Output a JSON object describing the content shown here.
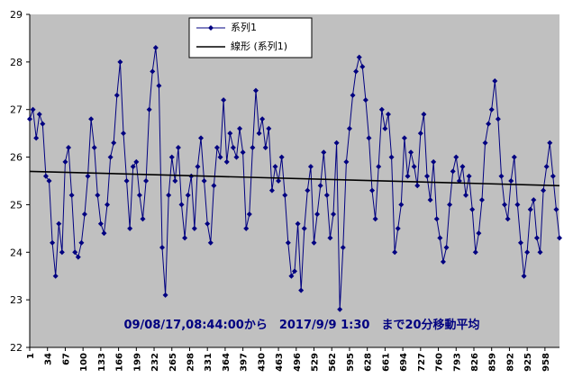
{
  "chart_data": {
    "type": "line",
    "annotation": "09/08/17,08:44:00から　2017/9/9 1:30　まで20分移動平均",
    "xlim": [
      1,
      985
    ],
    "ylim": [
      22,
      29
    ],
    "yticks": [
      22,
      23,
      24,
      25,
      26,
      27,
      28,
      29
    ],
    "xticks": [
      1,
      34,
      67,
      100,
      133,
      166,
      199,
      232,
      265,
      298,
      331,
      364,
      397,
      430,
      463,
      496,
      529,
      562,
      595,
      628,
      661,
      694,
      727,
      760,
      793,
      826,
      859,
      892,
      925,
      958
    ],
    "grid": false,
    "series": [
      {
        "name": "系列1",
        "color": "#000080",
        "marker": "diamond",
        "x": [
          1,
          7,
          13,
          19,
          25,
          31,
          37,
          43,
          49,
          55,
          61,
          67,
          73,
          79,
          85,
          91,
          97,
          103,
          109,
          115,
          121,
          127,
          133,
          139,
          145,
          151,
          157,
          163,
          169,
          175,
          181,
          187,
          193,
          199,
          205,
          211,
          217,
          223,
          229,
          235,
          241,
          247,
          253,
          259,
          265,
          271,
          277,
          283,
          289,
          295,
          301,
          307,
          313,
          319,
          325,
          331,
          337,
          343,
          349,
          355,
          361,
          367,
          373,
          379,
          385,
          391,
          397,
          403,
          409,
          415,
          421,
          427,
          433,
          439,
          445,
          451,
          457,
          463,
          469,
          475,
          481,
          487,
          493,
          499,
          505,
          511,
          517,
          523,
          529,
          535,
          541,
          547,
          553,
          559,
          565,
          571,
          577,
          583,
          589,
          595,
          601,
          607,
          613,
          619,
          625,
          631,
          637,
          643,
          649,
          655,
          661,
          667,
          673,
          679,
          685,
          691,
          697,
          703,
          709,
          715,
          721,
          727,
          733,
          739,
          745,
          751,
          757,
          763,
          769,
          775,
          781,
          787,
          793,
          799,
          805,
          811,
          817,
          823,
          829,
          835,
          841,
          847,
          853,
          859,
          865,
          871,
          877,
          883,
          889,
          895,
          901,
          907,
          913,
          919,
          925,
          931,
          937,
          943,
          949,
          955,
          961,
          967,
          973,
          979,
          985
        ],
        "values": [
          26.8,
          27.0,
          26.4,
          26.9,
          26.7,
          25.6,
          25.5,
          24.2,
          23.5,
          24.6,
          24.0,
          25.9,
          26.2,
          25.2,
          24.0,
          23.9,
          24.2,
          24.8,
          25.6,
          26.8,
          26.2,
          25.2,
          24.6,
          24.4,
          25.0,
          26.0,
          26.3,
          27.3,
          28.0,
          26.5,
          25.5,
          24.5,
          25.8,
          25.9,
          25.2,
          24.7,
          25.5,
          27.0,
          27.8,
          28.3,
          27.5,
          24.1,
          23.1,
          25.2,
          26.0,
          25.5,
          26.2,
          25.0,
          24.3,
          25.2,
          25.6,
          24.5,
          25.8,
          26.4,
          25.5,
          24.6,
          24.2,
          25.4,
          26.2,
          26.0,
          27.2,
          25.9,
          26.5,
          26.2,
          26.0,
          26.6,
          26.1,
          24.5,
          24.8,
          26.2,
          27.4,
          26.5,
          26.8,
          26.2,
          26.6,
          25.3,
          25.8,
          25.5,
          26.0,
          25.2,
          24.2,
          23.5,
          23.6,
          24.6,
          23.2,
          24.5,
          25.3,
          25.8,
          24.2,
          24.8,
          25.4,
          26.1,
          25.2,
          24.3,
          24.8,
          26.3,
          22.8,
          24.1,
          25.9,
          26.6,
          27.3,
          27.8,
          28.1,
          27.9,
          27.2,
          26.4,
          25.3,
          24.7,
          25.8,
          27.0,
          26.6,
          26.9,
          26.0,
          24.0,
          24.5,
          25.0,
          26.4,
          25.6,
          26.1,
          25.8,
          25.4,
          26.5,
          26.9,
          25.6,
          25.1,
          25.9,
          24.7,
          24.3,
          23.8,
          24.1,
          25.0,
          25.7,
          26.0,
          25.5,
          25.8,
          25.2,
          25.6,
          24.9,
          24.0,
          24.4,
          25.1,
          26.3,
          26.7,
          27.0,
          27.6,
          26.8,
          25.6,
          25.0,
          24.7,
          25.5,
          26.0,
          25.0,
          24.2,
          23.5,
          24.0,
          24.9,
          25.1,
          24.3,
          24.0,
          25.3,
          25.8,
          26.3,
          25.6,
          24.9,
          24.3
        ]
      },
      {
        "name": "線形 (系列1)",
        "color": "#000000",
        "marker": "none",
        "x": [
          1,
          985
        ],
        "values": [
          25.7,
          25.4
        ]
      }
    ]
  }
}
